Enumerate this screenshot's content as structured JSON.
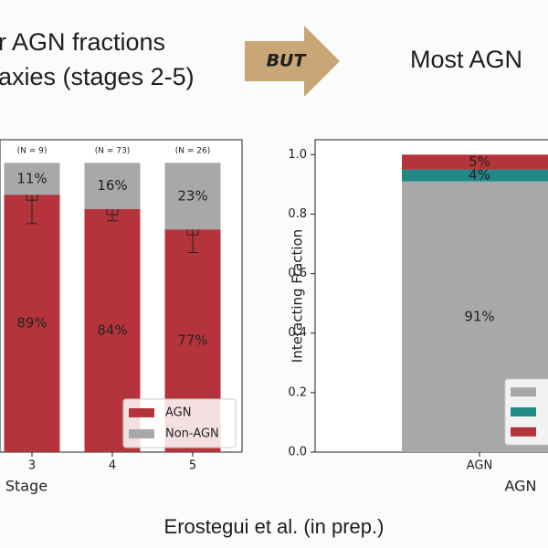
{
  "header": {
    "left_line1": "r AGN fractions",
    "left_line2": "axies (stages 2-5)",
    "arrow": "BUT",
    "right": "Most AGN"
  },
  "footer": "Erostegui et al. (in prep.)",
  "chart_data": [
    {
      "type": "bar",
      "stacked": true,
      "categories": [
        "3",
        "4",
        "5"
      ],
      "annotations": [
        "(N = 9)",
        "(N = 73)",
        "(N = 26)"
      ],
      "xlabel": "Stage",
      "ylim": [
        0,
        108
      ],
      "legend": "lower right",
      "series": [
        {
          "name": "AGN",
          "color": "#b5343c",
          "values": [
            89,
            84,
            77
          ],
          "value_labels": [
            "89%",
            "84%",
            "77%"
          ],
          "errors": [
            10,
            4,
            8
          ]
        },
        {
          "name": "Non-AGN",
          "color": "#a8a8a8",
          "values": [
            11,
            16,
            23
          ],
          "value_labels": [
            "11%",
            "16%",
            "23%"
          ]
        }
      ]
    },
    {
      "type": "bar",
      "stacked": true,
      "categories": [
        "AGN"
      ],
      "xlabel": "AGN",
      "ylabel": "Interacting Fraction",
      "ylim": [
        0,
        1.05
      ],
      "yticks": [
        {
          "value": 0,
          "label": "0.0"
        },
        0.2,
        0.4,
        0.6,
        0.8,
        {
          "value": 1,
          "label": "1.0"
        }
      ],
      "legend": "lower right",
      "series": [
        {
          "color": "#a8a8a8",
          "values": [
            0.91
          ],
          "value_labels": [
            "91%"
          ]
        },
        {
          "color": "#1f8a87",
          "values": [
            0.04
          ],
          "value_labels": [
            "4%"
          ]
        },
        {
          "color": "#b5343c",
          "values": [
            0.05
          ],
          "value_labels": [
            "5%"
          ]
        }
      ]
    }
  ]
}
